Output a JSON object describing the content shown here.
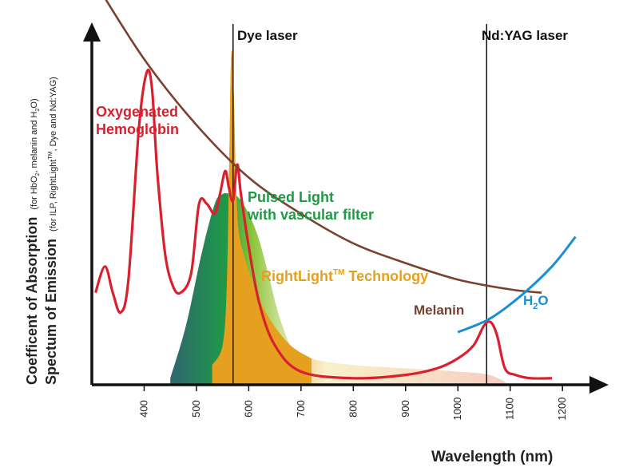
{
  "chart_data": {
    "type": "line",
    "title": "",
    "xlabel": "Wavelength (nm)",
    "ylabel": {
      "line1_main": "Coefficent of Absorption",
      "line1_note_pre": "(for HbO",
      "line1_note_sub": "2",
      "line1_note_mid": ", melanin and H",
      "line1_note_sub2": "2",
      "line1_note_post": "O)",
      "line2_main": "Spectum of Emission",
      "line2_note_pre": "(for ILP, RightLight",
      "line2_note_sup": "TM",
      "line2_note_post": ", Dye and Nd:YAG)"
    },
    "x_ticks": [
      400,
      500,
      600,
      700,
      800,
      900,
      1000,
      1100,
      1200
    ],
    "xlim": [
      300,
      1270
    ],
    "ylim": [
      0,
      100
    ],
    "vertical_lines": [
      {
        "name": "Dye laser",
        "x": 570
      },
      {
        "name": "Nd:YAG laser",
        "x": 1055
      }
    ],
    "series": [
      {
        "name": "Oxygenated Hemoglobin",
        "label_line1": "Oxygenated",
        "label_line2": "Hemoglobin",
        "color": "#d9202f",
        "x": [
          307,
          325,
          340,
          355,
          370,
          390,
          405,
          415,
          425,
          440,
          455,
          470,
          490,
          505,
          520,
          535,
          545,
          555,
          562,
          570,
          578,
          585,
          600,
          620,
          650,
          700,
          800,
          900,
          960,
          1000,
          1030,
          1050,
          1063,
          1075,
          1090,
          1110,
          1140,
          1180
        ],
        "y": [
          28,
          36,
          28,
          22,
          32,
          78,
          95,
          90,
          65,
          40,
          30,
          28,
          34,
          55,
          55,
          52,
          58,
          65,
          60,
          56,
          67,
          58,
          42,
          25,
          12,
          4,
          2,
          3,
          5,
          8,
          12,
          18,
          19,
          15,
          5,
          3,
          2,
          2
        ]
      },
      {
        "name": "Melanin",
        "color": "#7a4030",
        "x": [
          300,
          400,
          500,
          600,
          700,
          800,
          900,
          1000,
          1100,
          1160
        ],
        "y": [
          124,
          99,
          79,
          63,
          52,
          43,
          37,
          32,
          29,
          28
        ]
      },
      {
        "name": "H2O",
        "label_main": "H",
        "label_sub": "2",
        "label_post": "O",
        "color": "#1a8fd0",
        "x": [
          1000,
          1060,
          1120,
          1180,
          1225
        ],
        "y": [
          16,
          20,
          27,
          36,
          45
        ]
      }
    ],
    "emissions": [
      {
        "name": "Pulsed Light with vascular filter",
        "label_line1": "Pulsed Light",
        "label_line2": "with vascular filter",
        "color_from": "#2e6b6a",
        "color_mid": "#1e9a45",
        "color_to": "#f4eec8",
        "x": [
          450,
          480,
          510,
          535,
          550,
          565,
          580,
          600,
          620,
          640,
          660,
          690,
          720
        ],
        "y": [
          2,
          18,
          40,
          55,
          58,
          58,
          57,
          52,
          44,
          32,
          20,
          8,
          1
        ]
      },
      {
        "name": "RightLight Technology",
        "label_main": "RightLight",
        "label_sup": "TM",
        "label_post": " Technology",
        "color": "#e5a020",
        "tail_color": "#f3c8b8",
        "x": [
          460,
          500,
          530,
          550,
          558,
          563,
          566,
          569,
          572,
          575,
          580,
          590,
          610,
          640,
          680,
          720,
          800,
          900,
          1000,
          1060,
          1100
        ],
        "y": [
          0,
          2,
          6,
          12,
          30,
          70,
          98,
          100,
          85,
          65,
          48,
          40,
          30,
          20,
          12,
          8,
          6,
          5,
          4,
          3,
          0
        ]
      }
    ]
  }
}
